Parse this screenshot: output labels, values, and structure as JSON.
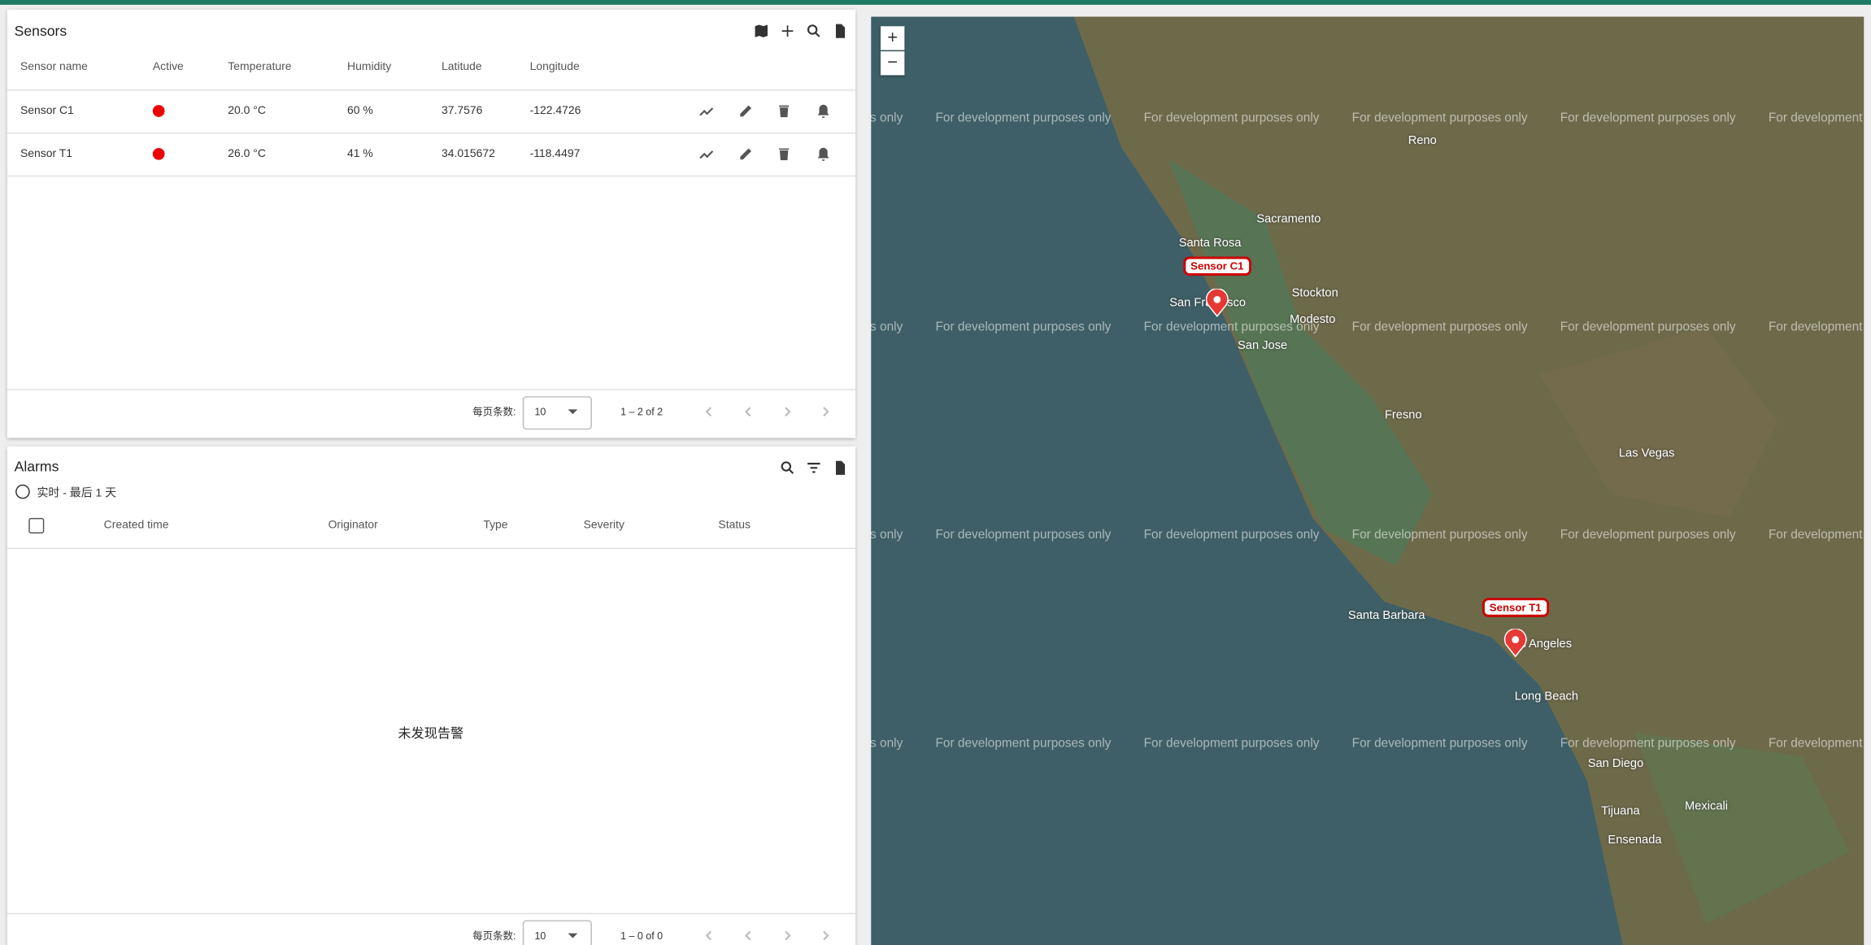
{
  "sensors": {
    "title": "Sensors",
    "columns": [
      "Sensor name",
      "Active",
      "Temperature",
      "Humidity",
      "Latitude",
      "Longitude"
    ],
    "rows": [
      [
        "Sensor C1",
        "20.0 °C",
        "60 %",
        "37.7576",
        "-122.4726"
      ],
      [
        "Sensor T1",
        "26.0 °C",
        "41 %",
        "34.015672",
        "-118.4497"
      ]
    ],
    "pagination": {
      "per_page_label": "每页条数:",
      "per_page": "10",
      "range": "1 – 2 of 2"
    }
  },
  "alarms": {
    "title": "Alarms",
    "time_window": "实时 - 最后 1 天",
    "columns": [
      "Created time",
      "Originator",
      "Type",
      "Severity",
      "Status"
    ],
    "empty": "未发现告警",
    "pagination": {
      "per_page_label": "每页条数:",
      "per_page": "10",
      "range": "1 – 0 of 0"
    }
  },
  "map": {
    "zoom_in": "+",
    "zoom_out": "−",
    "watermark": "For development purposes only",
    "markers": [
      "Sensor C1",
      "Sensor T1"
    ],
    "places": [
      "Sacramento",
      "San Francisco",
      "San Jose",
      "Fresno",
      "Reno",
      "Los Angeles",
      "Long Beach",
      "San Diego",
      "Tijuana",
      "Las Vegas",
      "Santa Rosa",
      "Stockton",
      "Modesto",
      "Santa Barbara",
      "Ensenada",
      "Mexicali"
    ]
  }
}
